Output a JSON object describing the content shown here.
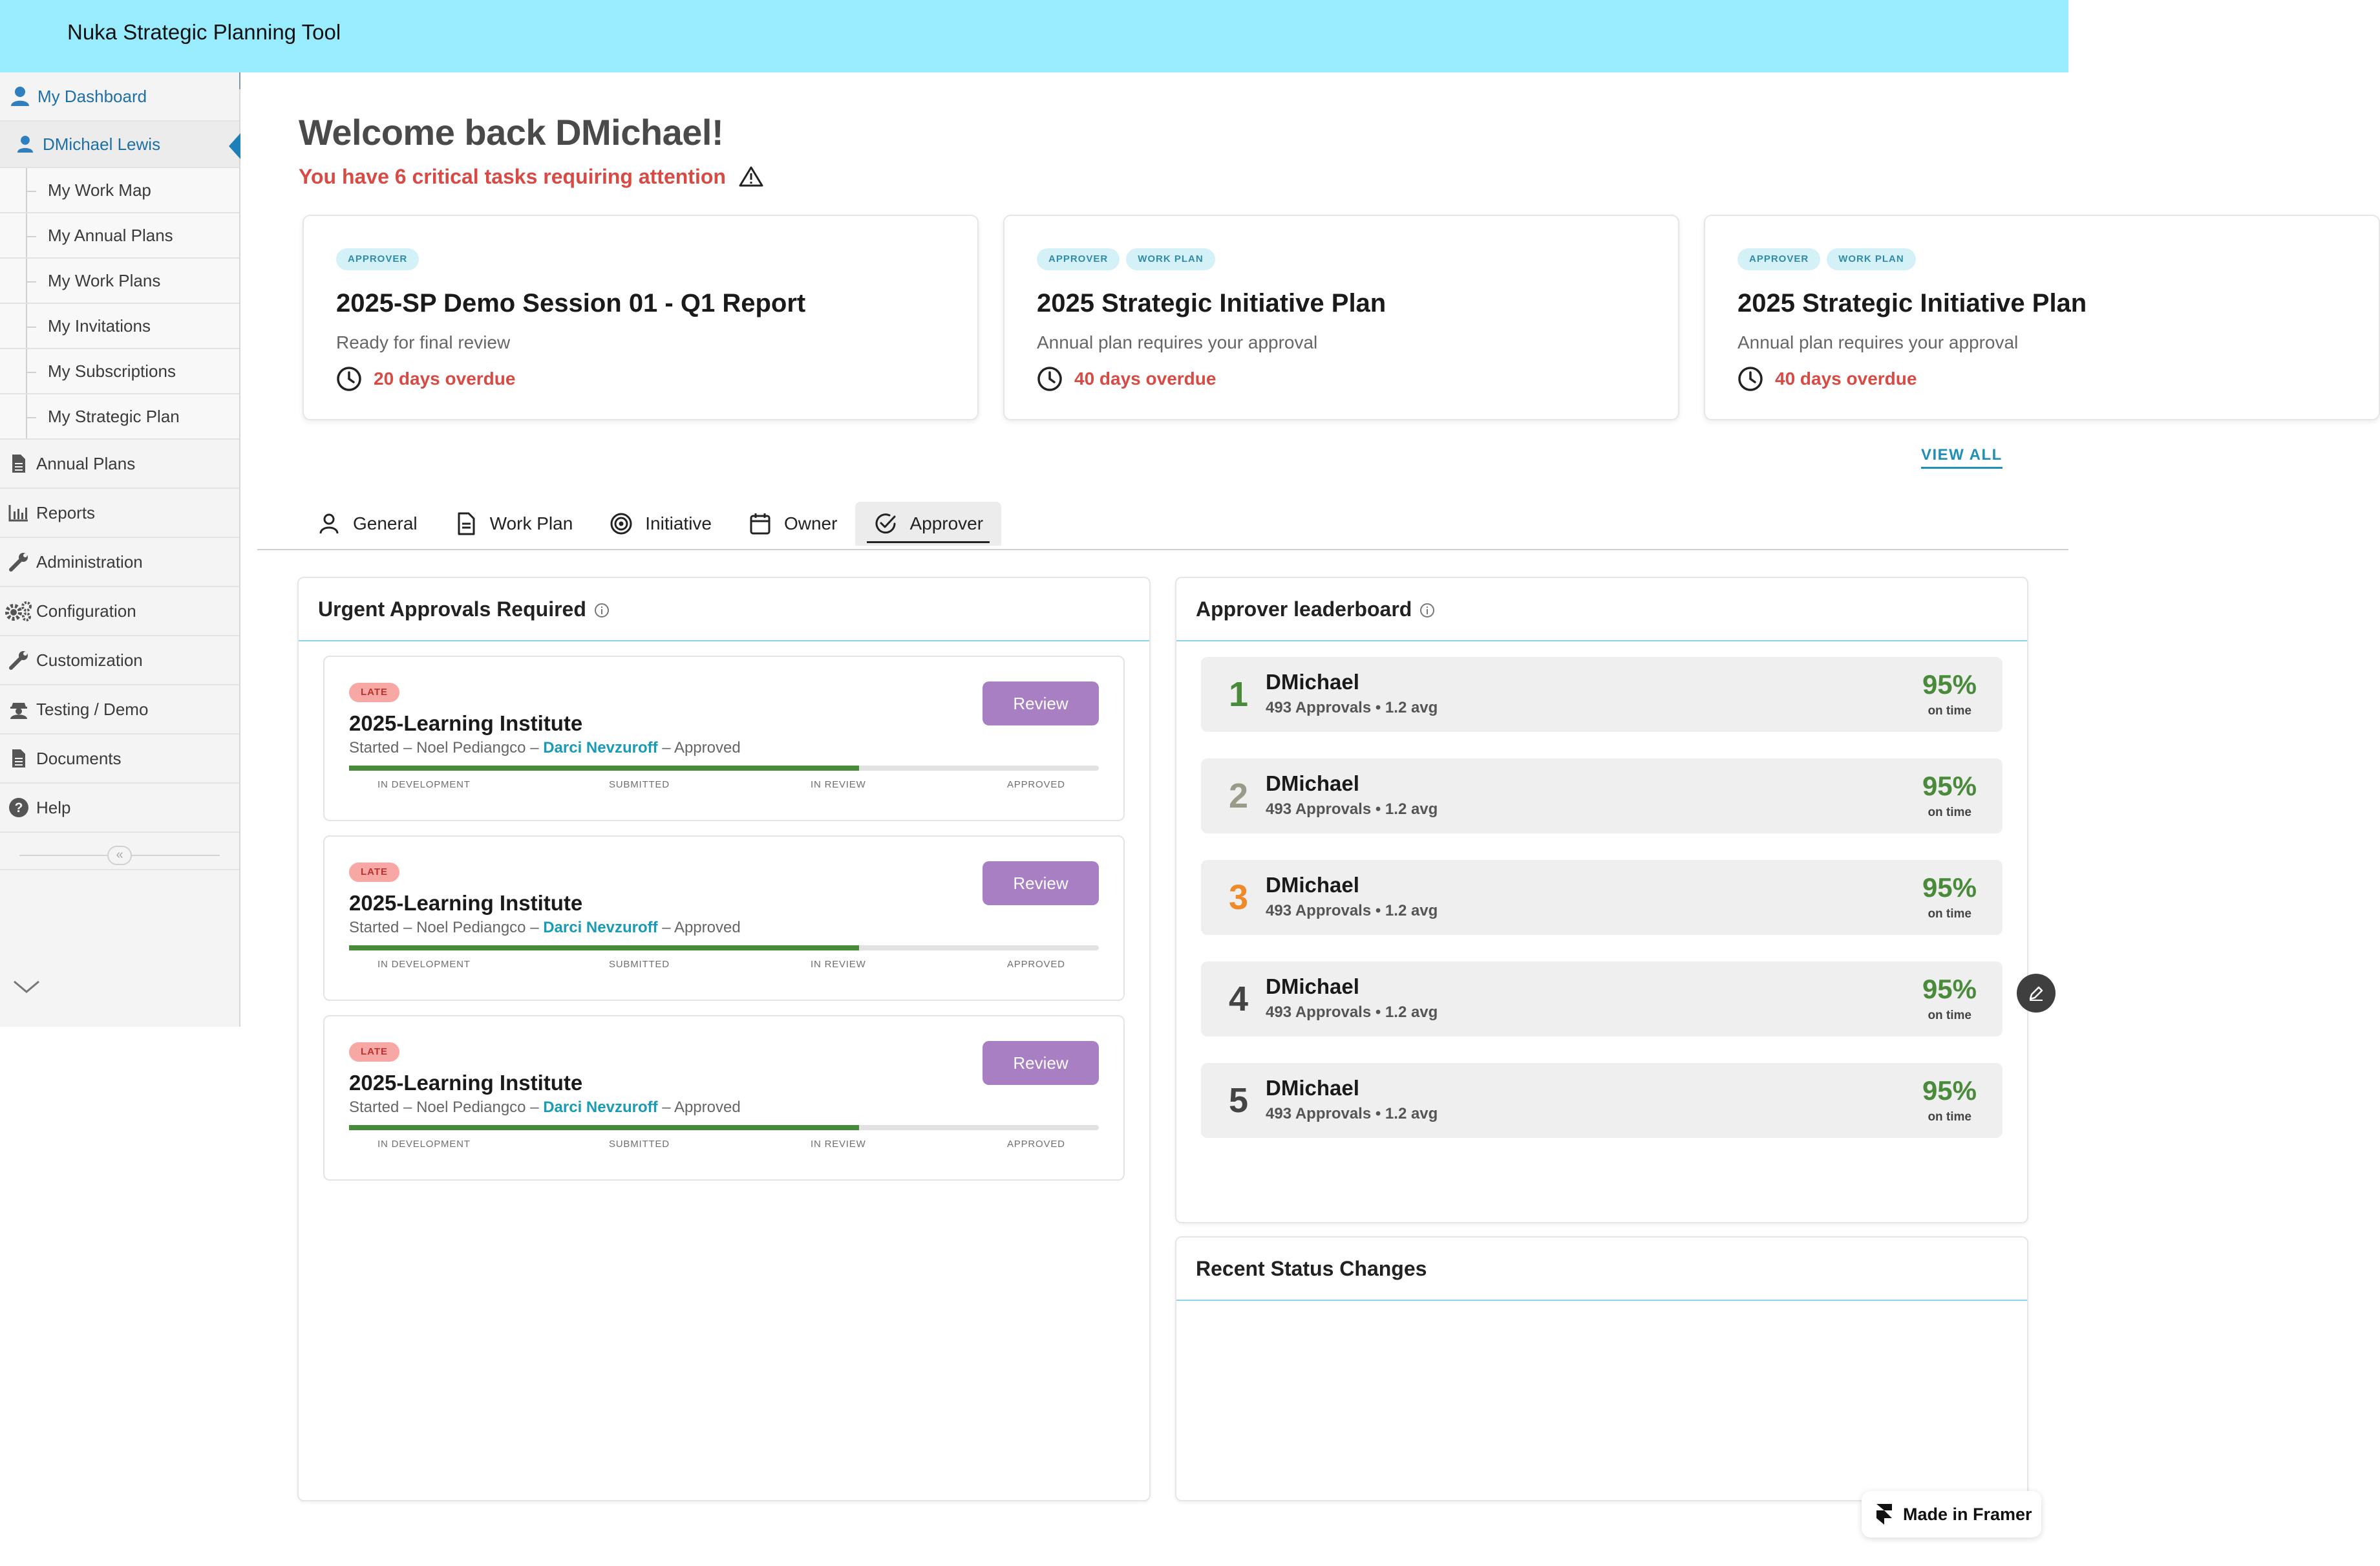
{
  "app": {
    "title": "Nuka Strategic Planning Tool"
  },
  "sidebar": {
    "dashboard": "My Dashboard",
    "user": "DMichael Lewis",
    "sub_items": [
      {
        "label": "My Work Map"
      },
      {
        "label": "My Annual Plans"
      },
      {
        "label": "My Work Plans"
      },
      {
        "label": "My Invitations"
      },
      {
        "label": "My Subscriptions"
      },
      {
        "label": "My Strategic Plan"
      }
    ],
    "main_items": [
      {
        "label": "Annual Plans",
        "icon": "document-icon"
      },
      {
        "label": "Reports",
        "icon": "bar-chart-icon"
      },
      {
        "label": "Administration",
        "icon": "wrench-icon"
      },
      {
        "label": "Configuration",
        "icon": "gears-icon"
      },
      {
        "label": "Customization",
        "icon": "wrench-icon"
      },
      {
        "label": "Testing / Demo",
        "icon": "user-secret-icon"
      },
      {
        "label": "Documents",
        "icon": "document-icon"
      },
      {
        "label": "Help",
        "icon": "help-icon"
      }
    ],
    "collapse_glyph": "«"
  },
  "welcome": {
    "title": "Welcome back DMichael!",
    "critical": "You have 6 critical tasks requiring attention"
  },
  "tasks": [
    {
      "badges": [
        "APPROVER"
      ],
      "title": "2025-SP Demo Session 01 - Q1 Report",
      "subtitle": "Ready for final review",
      "overdue": "20 days overdue"
    },
    {
      "badges": [
        "APPROVER",
        "WORK PLAN"
      ],
      "title": "2025 Strategic Initiative Plan",
      "subtitle": "Annual plan requires your approval",
      "overdue": "40 days overdue"
    },
    {
      "badges": [
        "APPROVER",
        "WORK PLAN"
      ],
      "title": "2025 Strategic Initiative Plan",
      "subtitle": "Annual plan requires your approval",
      "overdue": "40 days overdue"
    }
  ],
  "view_all": "VIEW ALL",
  "tabs": [
    {
      "label": "General",
      "icon": "user-icon"
    },
    {
      "label": "Work Plan",
      "icon": "file-icon"
    },
    {
      "label": "Initiative",
      "icon": "target-icon"
    },
    {
      "label": "Owner",
      "icon": "calendar-icon"
    },
    {
      "label": "Approver",
      "icon": "check-circle-icon",
      "active": true
    }
  ],
  "urgent": {
    "title": "Urgent Approvals Required",
    "items": [
      {
        "badge": "LATE",
        "title": "2025-Learning Institute",
        "review": "Review",
        "started": "Started",
        "person": "Noel Pediangco",
        "highlight": "Darci Nevzuroff",
        "status": "Approved",
        "progress": 0.68
      },
      {
        "badge": "LATE",
        "title": "2025-Learning Institute",
        "review": "Review",
        "started": "Started",
        "person": "Noel Pediangco",
        "highlight": "Darci Nevzuroff",
        "status": "Approved",
        "progress": 0.68
      },
      {
        "badge": "LATE",
        "title": "2025-Learning Institute",
        "review": "Review",
        "started": "Started",
        "person": "Noel Pediangco",
        "highlight": "Darci Nevzuroff",
        "status": "Approved",
        "progress": 0.68
      }
    ],
    "stages": [
      "IN DEVELOPMENT",
      "SUBMITTED",
      "IN REVIEW",
      "APPROVED"
    ]
  },
  "leaderboard": {
    "title": "Approver leaderboard",
    "rows": [
      {
        "rank": "1",
        "name": "DMichael",
        "stats": "493 Approvals • 1.2 avg",
        "pct": "95%",
        "ontime": "on time",
        "rank_color": "#4a8a3b"
      },
      {
        "rank": "2",
        "name": "DMichael",
        "stats": "493 Approvals • 1.2 avg",
        "pct": "95%",
        "ontime": "on time",
        "rank_color": "#9a9a88"
      },
      {
        "rank": "3",
        "name": "DMichael",
        "stats": "493 Approvals • 1.2 avg",
        "pct": "95%",
        "ontime": "on time",
        "rank_color": "#ef8a2a"
      },
      {
        "rank": "4",
        "name": "DMichael",
        "stats": "493 Approvals • 1.2 avg",
        "pct": "95%",
        "ontime": "on time",
        "rank_color": "#444444"
      },
      {
        "rank": "5",
        "name": "DMichael",
        "stats": "493 Approvals • 1.2 avg",
        "pct": "95%",
        "ontime": "on time",
        "rank_color": "#444444"
      }
    ]
  },
  "recent": {
    "title": "Recent Status Changes"
  },
  "framer": {
    "label": "Made in Framer"
  },
  "colors": {
    "topbar": "#98ecfd",
    "accent": "#1d8fb8",
    "danger": "#d84b45",
    "review": "#a87fc2",
    "progress": "#4a8a3b"
  }
}
